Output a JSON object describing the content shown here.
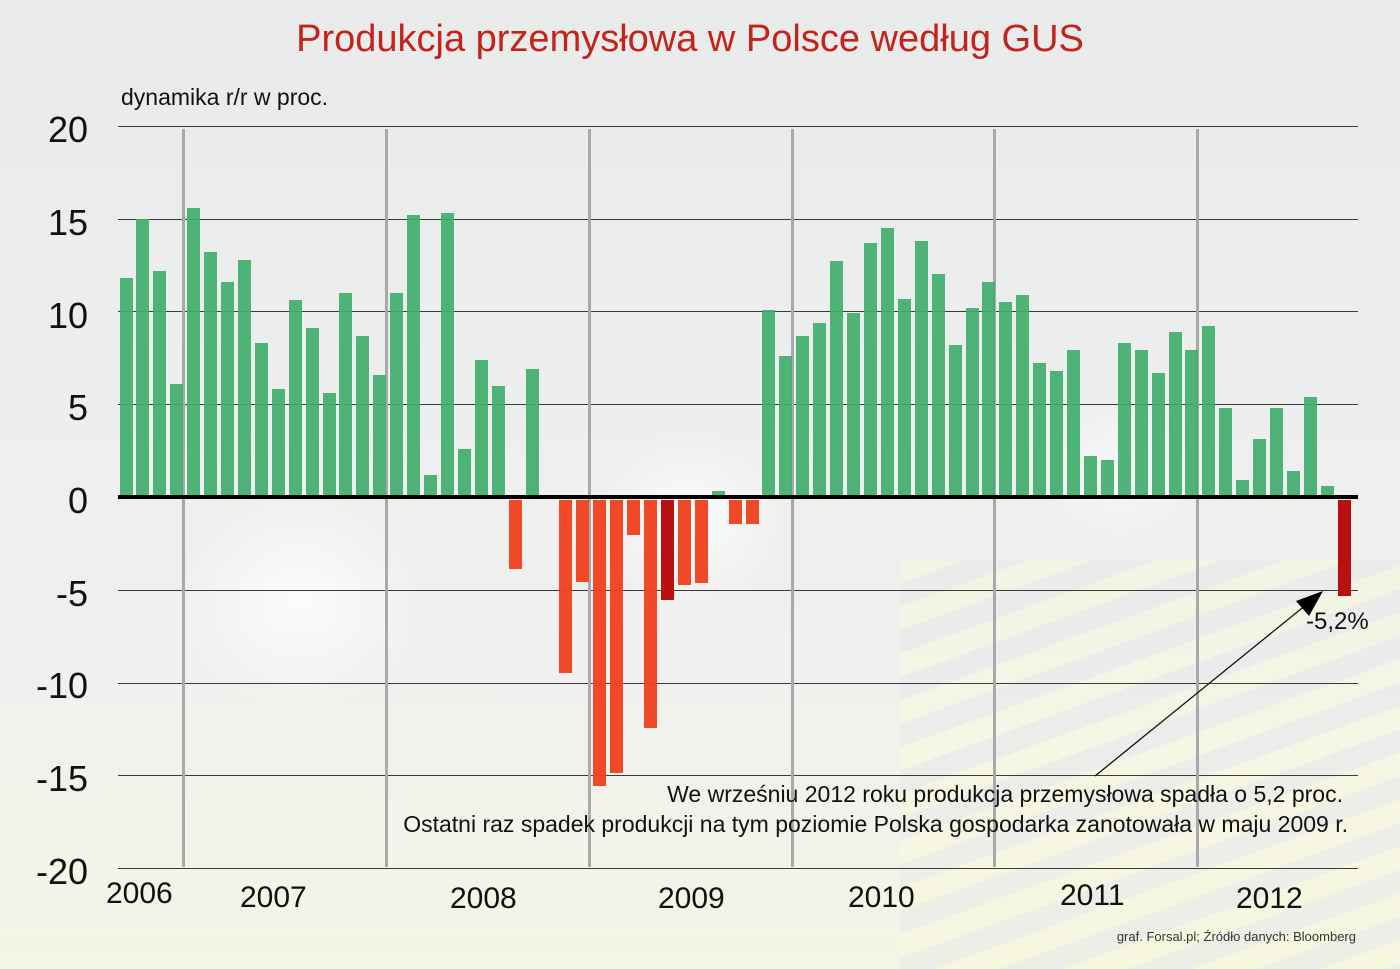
{
  "title": "Produkcja przemysłowa w Polsce według GUS",
  "y_axis_label": "dynamika r/r w proc.",
  "y_ticks": [
    "20",
    "15",
    "10",
    "5",
    "0",
    "-5",
    "-10",
    "-15",
    "-20"
  ],
  "x_years": [
    "2006",
    "2007",
    "2008",
    "2009",
    "2010",
    "2011",
    "2012"
  ],
  "callout": {
    "value_label": "-5,2%",
    "note_line1": "We wrześniu 2012 roku produkcja przemysłowa spadła o 5,2 proc.",
    "note_line2": "Ostatni raz spadek produkcji na tym poziomie Polska gospodarka zanotowała w maju 2009 r."
  },
  "source": "graf. Forsal.pl; Źródło danych: Bloomberg",
  "colors": {
    "title": "#c4231b",
    "positive": "#3fae6d",
    "negative": "#ee3f1a",
    "highlight": "#b81010"
  },
  "chart_data": {
    "type": "bar",
    "title": "Produkcja przemysłowa w Polsce według GUS",
    "xlabel": "",
    "ylabel": "dynamika r/r w proc.",
    "ylim": [
      -20,
      20
    ],
    "yticks": [
      20,
      15,
      10,
      5,
      0,
      -5,
      -10,
      -15,
      -20
    ],
    "grid": true,
    "legend": null,
    "period": "Sep 2006 - Sep 2012 (monthly)",
    "x_tick_labels": [
      "2006",
      "2007",
      "2008",
      "2009",
      "2010",
      "2011",
      "2012"
    ],
    "highlighted": [
      {
        "month": "2009-05",
        "value": -5.4
      },
      {
        "month": "2012-09",
        "value": -5.2,
        "annotation": "-5,2%"
      }
    ],
    "categories": [
      "2006-09",
      "2006-10",
      "2006-11",
      "2006-12",
      "2007-01",
      "2007-02",
      "2007-03",
      "2007-04",
      "2007-05",
      "2007-06",
      "2007-07",
      "2007-08",
      "2007-09",
      "2007-10",
      "2007-11",
      "2007-12",
      "2008-01",
      "2008-02",
      "2008-03",
      "2008-04",
      "2008-05",
      "2008-06",
      "2008-07",
      "2008-08",
      "2008-09",
      "2008-10",
      "2008-11",
      "2008-12",
      "2009-01",
      "2009-02",
      "2009-03",
      "2009-04",
      "2009-05",
      "2009-06",
      "2009-07",
      "2009-08",
      "2009-09",
      "2009-10",
      "2009-11",
      "2009-12",
      "2010-01",
      "2010-02",
      "2010-03",
      "2010-04",
      "2010-05",
      "2010-06",
      "2010-07",
      "2010-08",
      "2010-09",
      "2010-10",
      "2010-11",
      "2010-12",
      "2011-01",
      "2011-02",
      "2011-03",
      "2011-04",
      "2011-05",
      "2011-06",
      "2011-07",
      "2011-08",
      "2011-09",
      "2011-10",
      "2011-11",
      "2011-12",
      "2012-01",
      "2012-02",
      "2012-03",
      "2012-04",
      "2012-05",
      "2012-06",
      "2012-07",
      "2012-08",
      "2012-09"
    ],
    "values": [
      11.8,
      15.0,
      12.2,
      6.1,
      15.6,
      13.2,
      11.6,
      12.8,
      8.3,
      5.8,
      10.6,
      9.1,
      5.6,
      11.0,
      8.7,
      6.6,
      11.0,
      15.2,
      1.2,
      15.3,
      2.6,
      7.4,
      6.0,
      -3.7,
      6.9,
      0.1,
      -9.3,
      -4.4,
      -15.4,
      -14.7,
      -1.9,
      -12.3,
      -5.4,
      -4.6,
      -4.5,
      0.3,
      -1.3,
      -1.3,
      10.1,
      7.6,
      8.7,
      9.4,
      12.7,
      9.9,
      13.7,
      14.5,
      10.7,
      13.8,
      12.0,
      8.2,
      10.2,
      11.6,
      10.5,
      10.9,
      7.2,
      6.8,
      7.9,
      2.2,
      2.0,
      8.3,
      7.9,
      6.7,
      8.9,
      7.9,
      9.2,
      4.8,
      0.9,
      3.1,
      4.8,
      1.4,
      5.4,
      0.6,
      -5.2
    ]
  }
}
